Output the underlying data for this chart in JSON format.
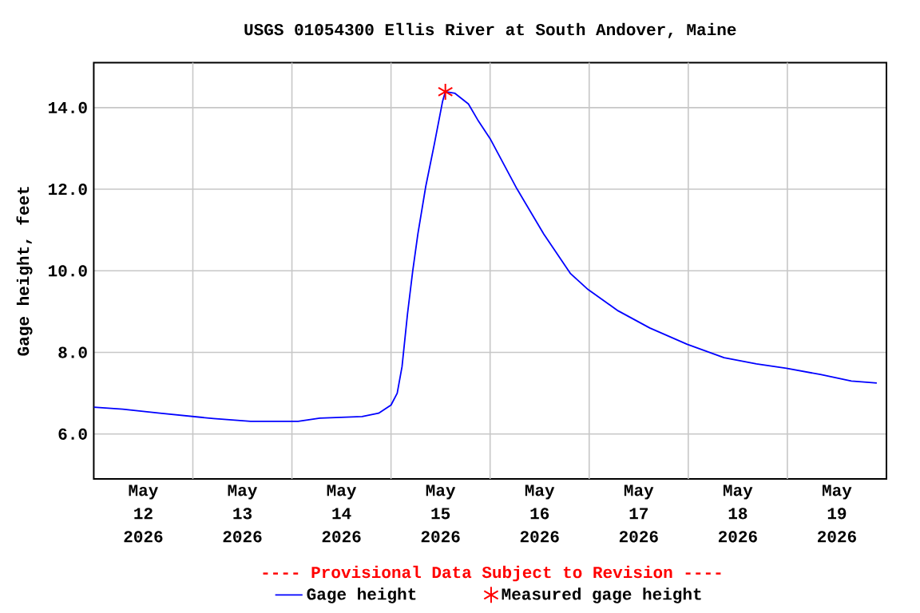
{
  "chart_data": {
    "type": "line",
    "title": "USGS 01054300 Ellis River at South Andover, Maine",
    "ylabel": "Gage height, feet",
    "annotations": [
      "---- Provisional Data Subject to Revision ----"
    ],
    "xlim": [
      "2026-05-12T00:00",
      "2026-05-20T00:00"
    ],
    "xticks": [
      {
        "value": "2026-05-12T12:00",
        "label": "May 12 2026"
      },
      {
        "value": "2026-05-13T12:00",
        "label": "May 13 2026"
      },
      {
        "value": "2026-05-14T12:00",
        "label": "May 14 2026"
      },
      {
        "value": "2026-05-15T12:00",
        "label": "May 15 2026"
      },
      {
        "value": "2026-05-16T12:00",
        "label": "May 16 2026"
      },
      {
        "value": "2026-05-17T12:00",
        "label": "May 17 2026"
      },
      {
        "value": "2026-05-18T12:00",
        "label": "May 18 2026"
      },
      {
        "value": "2026-05-19T12:00",
        "label": "May 19 2026"
      },
      {
        "value": "2026-05-13T00:00",
        "label": null
      },
      {
        "value": "2026-05-14T00:00",
        "label": null
      },
      {
        "value": "2026-05-15T00:00",
        "label": null
      },
      {
        "value": "2026-05-16T00:00",
        "label": null
      },
      {
        "value": "2026-05-17T00:00",
        "label": null
      },
      {
        "value": "2026-05-18T00:00",
        "label": null
      },
      {
        "value": "2026-05-19T00:00",
        "label": null
      }
    ],
    "ylim": [
      4.9,
      15.1
    ],
    "yticks": [
      {
        "value": 6,
        "label": "6.0"
      },
      {
        "value": 8,
        "label": "8.0"
      },
      {
        "value": 10,
        "label": "10.0"
      },
      {
        "value": 12,
        "label": "12.0"
      },
      {
        "value": 14,
        "label": "14.0"
      }
    ],
    "grid": true,
    "legend": "bottom",
    "series": [
      {
        "name": "Gage height",
        "color": "#0000ff",
        "marker": "none",
        "x": [
          "2026-05-12T00:00",
          "2026-05-12T07:00",
          "2026-05-12T16:00",
          "2026-05-13T05:00",
          "2026-05-13T14:00",
          "2026-05-14T01:30",
          "2026-05-14T06:45",
          "2026-05-14T17:00",
          "2026-05-14T21:00",
          "2026-05-15T00:00",
          "2026-05-15T01:30",
          "2026-05-15T02:40",
          "2026-05-15T04:00",
          "2026-05-15T05:15",
          "2026-05-15T06:30",
          "2026-05-15T08:25",
          "2026-05-15T10:30",
          "2026-05-15T12:30",
          "2026-05-15T13:10",
          "2026-05-15T15:30",
          "2026-05-15T18:45",
          "2026-05-15T21:00",
          "2026-05-16T00:00",
          "2026-05-16T06:30",
          "2026-05-16T13:00",
          "2026-05-16T19:30",
          "2026-05-16T23:45",
          "2026-05-17T07:00",
          "2026-05-17T14:40",
          "2026-05-17T23:45",
          "2026-05-18T08:40",
          "2026-05-18T16:30",
          "2026-05-18T23:45",
          "2026-05-19T08:00",
          "2026-05-19T15:30",
          "2026-05-19T21:40"
        ],
        "values": [
          6.66,
          6.61,
          6.51,
          6.38,
          6.31,
          6.31,
          6.39,
          6.43,
          6.51,
          6.71,
          7.0,
          7.65,
          8.95,
          9.99,
          10.9,
          12.07,
          13.11,
          14.16,
          14.39,
          14.35,
          14.09,
          13.7,
          13.24,
          12.01,
          10.9,
          9.93,
          9.54,
          9.02,
          8.6,
          8.2,
          7.87,
          7.72,
          7.61,
          7.46,
          7.3,
          7.25
        ]
      },
      {
        "name": "Measured gage height",
        "type": "scatter",
        "color": "#ff0000",
        "marker": "cross",
        "x": [
          "2026-05-15T13:10"
        ],
        "values": [
          14.39
        ]
      }
    ]
  }
}
